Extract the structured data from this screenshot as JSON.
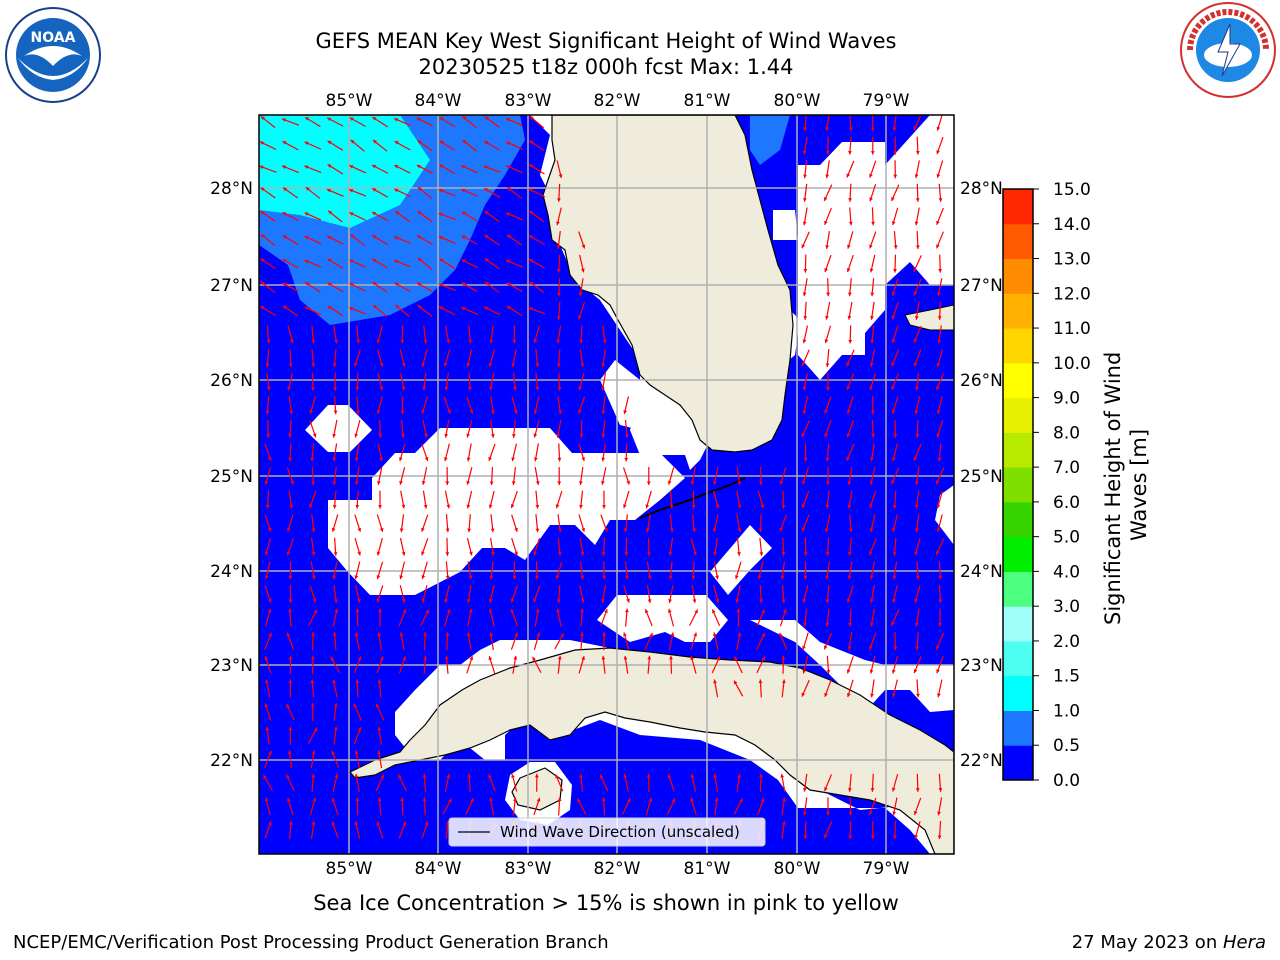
{
  "title": {
    "line1": "GEFS MEAN Key West Significant Height of Wind Waves",
    "line2": "20230525 t18z 000h fcst   Max: 1.44"
  },
  "map": {
    "lon_ticks": [
      "85°W",
      "84°W",
      "83°W",
      "82°W",
      "81°W",
      "80°W",
      "79°W"
    ],
    "lat_ticks": [
      "28°N",
      "27°N",
      "26°N",
      "25°N",
      "24°N",
      "23°N",
      "22°N"
    ],
    "legend_label": "Wind Wave Direction (unscaled)",
    "colors": {
      "ocean_dark": "#0000ff",
      "ocean_mid": "#1e78ff",
      "ocean_light": "#00ffff",
      "land": "#efecdc",
      "arrow": "#ff0000",
      "grid": "#b0b0b0"
    }
  },
  "colorbar": {
    "label": "Significant Height of Wind Waves [m]",
    "ticks": [
      "0.0",
      "0.5",
      "1.0",
      "1.5",
      "2.0",
      "3.0",
      "4.0",
      "5.0",
      "6.0",
      "7.0",
      "8.0",
      "9.0",
      "10.0",
      "11.0",
      "12.0",
      "13.0",
      "14.0",
      "15.0"
    ],
    "colors": [
      "#0000ff",
      "#1e78ff",
      "#00ffff",
      "#4dfff0",
      "#a0fffa",
      "#4dff80",
      "#00ee00",
      "#38d400",
      "#7fe000",
      "#b8ea00",
      "#e6f000",
      "#ffff00",
      "#ffd700",
      "#ffb000",
      "#ff8c00",
      "#ff5a00",
      "#ff2800"
    ]
  },
  "note": "Sea Ice Concentration > 15% is shown in pink to yellow",
  "footer": {
    "left": "NCEP/EMC/Verification Post Processing Product Generation Branch",
    "right_prefix": "27 May 2023 on ",
    "right_host": "Hera"
  },
  "logos": {
    "noaa": "NOAA",
    "nws": "NATIONAL WEATHER SERVICE"
  }
}
